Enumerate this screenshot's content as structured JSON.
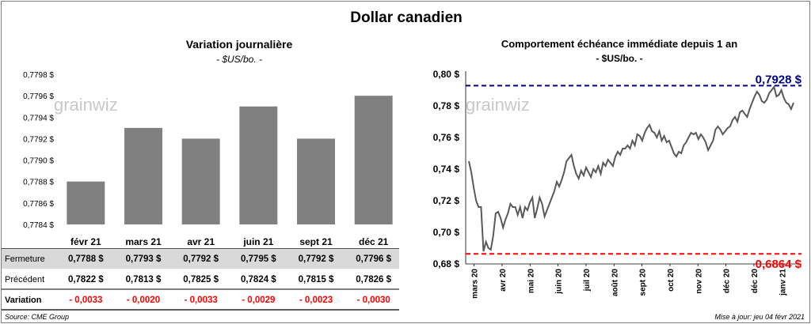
{
  "title": "Dollar canadien",
  "left_panel": {
    "title": "Variation  journalière",
    "unit": "- $US/bo. -",
    "watermark": "grainwiz"
  },
  "right_panel": {
    "title": "Comportement échéance immédiate depuis 1 an",
    "unit": "- $US/bo. -",
    "watermark": "grainwiz",
    "high_label": "0,7928 $",
    "low_label": "0,6864 $"
  },
  "table": {
    "rows": [
      {
        "label": "Fermeture",
        "values": [
          "0,7788  $",
          "0,7793  $",
          "0,7792  $",
          "0,7795  $",
          "0,7792  $",
          "0,7796  $"
        ]
      },
      {
        "label": "Précédent",
        "values": [
          "0,7822  $",
          "0,7813  $",
          "0,7825  $",
          "0,7824  $",
          "0,7815  $",
          "0,7826  $"
        ]
      },
      {
        "label": "Variation",
        "values": [
          "- 0,0033",
          "- 0,0020",
          "- 0,0033",
          "- 0,0029",
          "- 0,0023",
          "- 0,0030"
        ]
      }
    ]
  },
  "footer": {
    "source": "Source: CME Group",
    "updated": "Mise à jour: jeu 04 févr 2021"
  },
  "colors": {
    "bar": "#808080",
    "line": "#595959",
    "high_line": "#00008b",
    "low_line": "#ff0000",
    "negative": "#ff0000",
    "fermeture_bg": "#d9d9d9"
  },
  "chart_data": [
    {
      "type": "bar",
      "categories": [
        "févr 21",
        "mars 21",
        "avr 21",
        "juin 21",
        "sept 21",
        "déc 21"
      ],
      "values": [
        0.7788,
        0.7793,
        0.7792,
        0.7795,
        0.7792,
        0.7796
      ],
      "ylim": [
        0.7784,
        0.7798
      ],
      "yticks": [
        "0,7784 $",
        "0,7786 $",
        "0,7788 $",
        "0,7790 $",
        "0,7792 $",
        "0,7794 $",
        "0,7796 $",
        "0,7798 $"
      ],
      "grid": false
    },
    {
      "type": "line",
      "ylim": [
        0.68,
        0.8
      ],
      "yticks": [
        "0,68 $",
        "0,70 $",
        "0,72 $",
        "0,74 $",
        "0,76 $",
        "0,78 $",
        "0,80 $"
      ],
      "xticks": [
        "mars 20",
        "avr 20",
        "mai 20",
        "juin 20",
        "juil 20",
        "août 20",
        "sept 20",
        "oct 20",
        "nov 20",
        "déc 20",
        "déc 20",
        "janv 21"
      ],
      "reference_lines": [
        0.7928,
        0.6864
      ],
      "values": [
        0.745,
        0.738,
        0.728,
        0.72,
        0.716,
        0.716,
        0.688,
        0.694,
        0.69,
        0.689,
        0.698,
        0.712,
        0.713,
        0.709,
        0.703,
        0.708,
        0.712,
        0.718,
        0.716,
        0.716,
        0.711,
        0.716,
        0.709,
        0.716,
        0.714,
        0.719,
        0.722,
        0.709,
        0.715,
        0.722,
        0.718,
        0.71,
        0.714,
        0.718,
        0.722,
        0.726,
        0.732,
        0.729,
        0.733,
        0.738,
        0.745,
        0.747,
        0.749,
        0.742,
        0.737,
        0.734,
        0.739,
        0.736,
        0.741,
        0.738,
        0.735,
        0.74,
        0.738,
        0.742,
        0.737,
        0.744,
        0.742,
        0.746,
        0.744,
        0.742,
        0.748,
        0.751,
        0.749,
        0.753,
        0.753,
        0.755,
        0.753,
        0.758,
        0.755,
        0.762,
        0.761,
        0.758,
        0.763,
        0.766,
        0.768,
        0.764,
        0.763,
        0.76,
        0.764,
        0.758,
        0.761,
        0.757,
        0.758,
        0.754,
        0.75,
        0.748,
        0.751,
        0.75,
        0.755,
        0.757,
        0.76,
        0.763,
        0.762,
        0.763,
        0.759,
        0.762,
        0.76,
        0.757,
        0.752,
        0.755,
        0.758,
        0.765,
        0.767,
        0.765,
        0.762,
        0.764,
        0.766,
        0.767,
        0.771,
        0.773,
        0.77,
        0.776,
        0.777,
        0.775,
        0.773,
        0.778,
        0.782,
        0.786,
        0.789,
        0.787,
        0.783,
        0.782,
        0.784,
        0.788,
        0.79,
        0.792,
        0.786,
        0.787,
        0.79,
        0.785,
        0.782,
        0.781,
        0.778,
        0.782
      ]
    }
  ]
}
